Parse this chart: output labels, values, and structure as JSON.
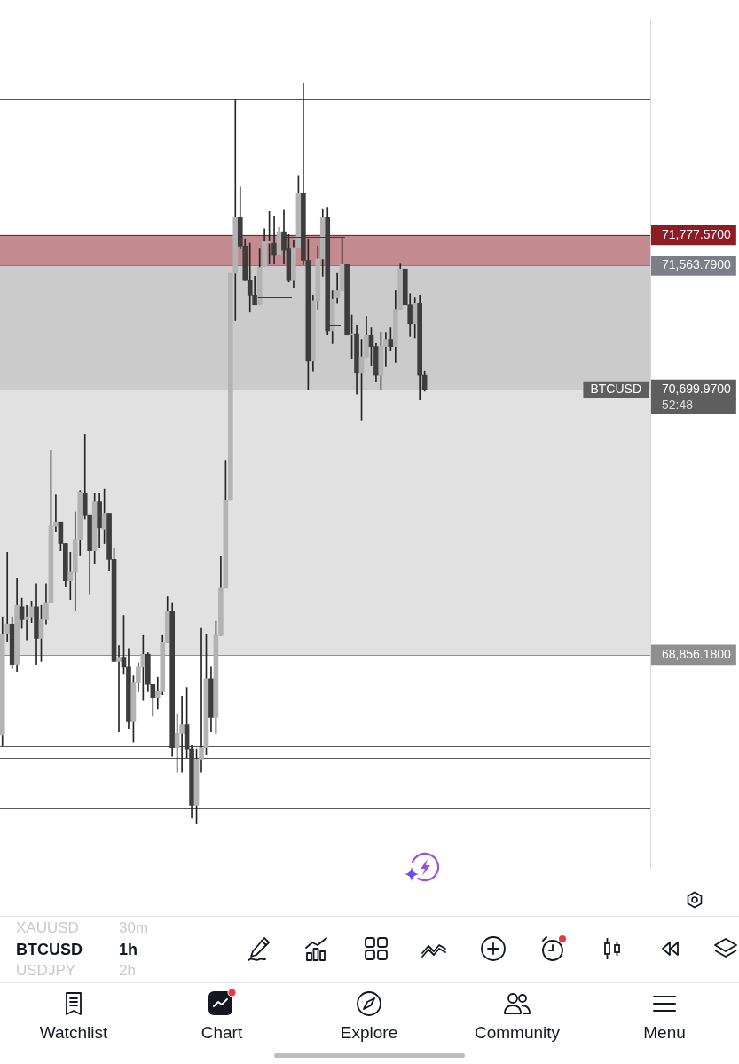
{
  "chart_data": {
    "type": "candlestick",
    "categories": [
      null,
      null,
      null,
      null,
      null,
      null,
      null,
      null,
      null,
      null,
      null,
      null,
      null,
      null,
      null,
      null,
      null,
      null,
      null,
      null,
      null,
      null,
      null,
      null,
      null,
      null,
      null,
      null,
      null,
      null,
      null,
      null,
      null,
      null,
      null,
      null,
      null,
      null,
      null,
      null,
      null,
      null,
      null,
      null,
      null,
      null,
      null,
      null,
      null,
      null,
      null,
      null,
      null,
      null,
      null,
      null,
      null,
      null,
      null,
      null,
      null,
      null,
      null,
      null,
      null,
      null,
      null,
      null,
      null,
      null,
      null,
      null,
      null,
      null,
      null,
      null,
      null,
      null,
      null,
      null,
      null,
      null,
      null,
      null,
      null,
      null,
      null,
      null,
      null,
      null,
      null,
      null,
      null,
      null,
      null,
      null,
      null,
      null,
      null,
      null,
      null,
      null,
      null,
      null,
      null,
      null,
      null,
      null,
      null,
      null,
      null,
      null,
      null,
      null,
      null,
      null,
      null,
      null,
      null,
      null,
      null,
      null,
      null,
      null,
      null,
      null,
      null,
      null,
      null,
      null,
      null,
      null,
      null,
      null
    ],
    "series": [
      {
        "name": "BTCUSD",
        "ohlc": [
          [
            68300,
            69120,
            68220,
            69000
          ],
          [
            69000,
            69570,
            68950,
            69070
          ],
          [
            69070,
            69120,
            68760,
            68790
          ],
          [
            68790,
            69390,
            68740,
            69200
          ],
          [
            69190,
            69250,
            69040,
            69100
          ],
          [
            69100,
            69200,
            68960,
            69120
          ],
          [
            69120,
            69230,
            69080,
            69190
          ],
          [
            69190,
            69350,
            68790,
            68970
          ],
          [
            68970,
            69200,
            68810,
            69100
          ],
          [
            69100,
            69350,
            69070,
            69220
          ],
          [
            69220,
            70280,
            69220,
            69750
          ],
          [
            69750,
            69970,
            69710,
            69780
          ],
          [
            69780,
            69780,
            69580,
            69630
          ],
          [
            69630,
            69630,
            69330,
            69370
          ],
          [
            69370,
            69570,
            69240,
            69430
          ],
          [
            69430,
            69850,
            69160,
            69660
          ],
          [
            69660,
            70000,
            69550,
            69990
          ],
          [
            69980,
            70390,
            69800,
            69830
          ],
          [
            69830,
            69830,
            69280,
            69580
          ],
          [
            69580,
            69980,
            69490,
            69920
          ],
          [
            69920,
            69980,
            69600,
            69740
          ],
          [
            69730,
            70010,
            69630,
            69840
          ],
          [
            69840,
            69840,
            69440,
            69520
          ],
          [
            69520,
            69600,
            68810,
            68810
          ],
          [
            68810,
            68920,
            68320,
            68840
          ],
          [
            68840,
            69130,
            68720,
            68770
          ],
          [
            68770,
            68900,
            68340,
            68390
          ],
          [
            68390,
            68710,
            68250,
            68660
          ],
          [
            68660,
            68800,
            68600,
            68770
          ],
          [
            68770,
            68990,
            68540,
            68860
          ],
          [
            68860,
            68870,
            68600,
            68650
          ],
          [
            68650,
            68650,
            68430,
            68560
          ],
          [
            68560,
            68700,
            68480,
            68600
          ],
          [
            68600,
            68990,
            68580,
            68940
          ],
          [
            68940,
            69260,
            68940,
            69160
          ],
          [
            69160,
            69220,
            68150,
            68210
          ],
          [
            68210,
            68440,
            68040,
            68310
          ],
          [
            68310,
            68570,
            68040,
            68370
          ],
          [
            68370,
            68630,
            68140,
            68200
          ],
          [
            68200,
            68230,
            67720,
            67810
          ],
          [
            67810,
            68200,
            67680,
            68130
          ],
          [
            68130,
            69040,
            68040,
            68210
          ],
          [
            68210,
            69000,
            68160,
            68690
          ],
          [
            68690,
            68770,
            68320,
            68420
          ],
          [
            68420,
            69090,
            68310,
            68990
          ],
          [
            68990,
            69540,
            68990,
            69320
          ],
          [
            69320,
            70210,
            69320,
            69930
          ],
          [
            69930,
            71510,
            69930,
            71510
          ],
          [
            71510,
            72720,
            71180,
            71900
          ],
          [
            71900,
            72110,
            71680,
            71700
          ],
          [
            71700,
            71750,
            71460,
            71460
          ],
          [
            71460,
            71720,
            71240,
            71360
          ],
          [
            71360,
            71490,
            71290,
            71290
          ],
          [
            71290,
            71680,
            71290,
            71550
          ],
          [
            71560,
            71820,
            71560,
            71730
          ],
          [
            71720,
            71940,
            71580,
            71730
          ],
          [
            71720,
            71910,
            71580,
            71640
          ],
          [
            71640,
            71830,
            71640,
            71800
          ],
          [
            71800,
            71950,
            71580,
            71670
          ],
          [
            71680,
            71780,
            71450,
            71460
          ],
          [
            71460,
            71740,
            71410,
            71690
          ],
          [
            71690,
            72190,
            71690,
            72070
          ],
          [
            72070,
            72830,
            71570,
            71600
          ],
          [
            71600,
            71750,
            70700,
            70900
          ],
          [
            70900,
            71360,
            70830,
            71320
          ],
          [
            71320,
            71700,
            71260,
            71610
          ],
          [
            71610,
            71960,
            71490,
            71900
          ],
          [
            71900,
            71970,
            71080,
            71110
          ],
          [
            71110,
            71390,
            71020,
            71330
          ],
          [
            71340,
            71510,
            71300,
            71390
          ],
          [
            71390,
            71760,
            71390,
            71570
          ],
          [
            71570,
            71570,
            71080,
            71080
          ],
          [
            71080,
            71220,
            70920,
            71090
          ],
          [
            71090,
            71150,
            70670,
            70820
          ],
          [
            70820,
            71050,
            70490,
            70930
          ],
          [
            70930,
            71210,
            70930,
            71080
          ],
          [
            71080,
            71130,
            70870,
            71000
          ],
          [
            71000,
            71020,
            70760,
            70800
          ],
          [
            70800,
            71100,
            70700,
            71000
          ],
          [
            71000,
            71100,
            70860,
            71050
          ],
          [
            71050,
            71130,
            70970,
            71000
          ],
          [
            71000,
            71390,
            70890,
            71260
          ],
          [
            71260,
            71580,
            71260,
            71540
          ],
          [
            71540,
            71540,
            71290,
            71290
          ],
          [
            71290,
            71370,
            71070,
            71160
          ],
          [
            71160,
            71340,
            71060,
            71300
          ],
          [
            71300,
            71360,
            70630,
            70800
          ],
          [
            70800,
            70830,
            70690,
            70699.97
          ],
          null,
          null,
          null,
          null,
          null,
          null,
          null,
          null,
          null,
          null,
          null,
          null,
          null,
          null,
          null,
          null,
          null,
          null,
          null,
          null,
          null,
          null,
          null,
          null,
          null,
          null,
          null,
          null,
          null,
          null,
          null,
          null,
          null,
          null,
          null,
          null,
          null,
          null,
          null,
          null,
          null,
          null,
          null,
          null,
          null,
          null
        ],
        "colors": [
          "#b3b3b3",
          "#b3b3b3",
          "#3d3d3d",
          "#b3b3b3",
          "#3d3d3d",
          "#b3b3b3",
          "#b3b3b3",
          "#3d3d3d",
          "#b3b3b3",
          "#b3b3b3",
          "#b3b3b3",
          "#b3b3b3",
          "#3d3d3d",
          "#3d3d3d",
          "#b3b3b3",
          "#b3b3b3",
          "#b3b3b3",
          "#3d3d3d",
          "#3d3d3d",
          "#b3b3b3",
          "#3d3d3d",
          "#b3b3b3",
          "#3d3d3d",
          "#3d3d3d",
          "#b3b3b3",
          "#3d3d3d",
          "#3d3d3d",
          "#b3b3b3",
          "#b3b3b3",
          "#b3b3b3",
          "#3d3d3d",
          "#3d3d3d",
          "#b3b3b3",
          "#b3b3b3",
          "#b3b3b3",
          "#3d3d3d",
          "#b3b3b3",
          "#b3b3b3",
          "#3d3d3d",
          "#3d3d3d",
          "#b3b3b3",
          "#b3b3b3",
          "#b3b3b3",
          "#3d3d3d",
          "#b3b3b3",
          "#b3b3b3",
          "#b3b3b3",
          "#b3b3b3",
          "#b3b3b3",
          "#3d3d3d",
          "#3d3d3d",
          "#3d3d3d",
          "#3d3d3d",
          "#b3b3b3",
          "#b3b3b3",
          "#b3b3b3",
          "#3d3d3d",
          "#b3b3b3",
          "#3d3d3d",
          "#3d3d3d",
          "#b3b3b3",
          "#b3b3b3",
          "#3d3d3d",
          "#3d3d3d",
          "#b3b3b3",
          "#b3b3b3",
          "#b3b3b3",
          "#3d3d3d",
          "#b3b3b3",
          "#b3b3b3",
          "#b3b3b3",
          "#3d3d3d",
          "#b3b3b3",
          "#3d3d3d",
          "#b3b3b3",
          "#b3b3b3",
          "#3d3d3d",
          "#3d3d3d",
          "#b3b3b3",
          "#b3b3b3",
          "#3d3d3d",
          "#b3b3b3",
          "#b3b3b3",
          "#3d3d3d",
          "#3d3d3d",
          "#b3b3b3",
          "#3d3d3d",
          "#3d3d3d",
          null,
          null,
          null,
          null,
          null,
          null,
          null,
          null,
          null,
          null,
          null,
          null,
          null,
          null,
          null,
          null,
          null,
          null,
          null,
          null,
          null,
          null,
          null,
          null,
          null,
          null,
          null,
          null,
          null,
          null,
          null,
          null,
          null,
          null,
          null,
          null,
          null,
          null,
          null,
          null,
          null,
          null,
          null,
          null,
          null,
          null
        ]
      }
    ],
    "ylim": [
      67370,
      73280
    ],
    "yticks": [
      {
        "value": 71777.57,
        "label": "71,777.5700"
      },
      {
        "value": 71563.79,
        "label": "71,563.7900"
      },
      {
        "value": 70699.97,
        "label": "70,699.9700"
      },
      {
        "value": 68856.18,
        "label": "68,856.1800"
      }
    ],
    "tick_labels": "y",
    "bands": [
      {
        "axis": "y",
        "from": 68856.18,
        "to": 71563.79,
        "color": "#e1e1e1"
      },
      {
        "axis": "y",
        "from": 70699.97,
        "to": 71563.79,
        "color": "#cbcbcb"
      },
      {
        "axis": "y",
        "from": 71563.79,
        "to": 71777.57,
        "color": "#c38b90"
      }
    ],
    "ref_lines": [
      {
        "axis": "y",
        "value": 71777.57,
        "color": "#8e1c24"
      },
      {
        "axis": "y",
        "value": 71563.79,
        "color": "#7c7f88"
      },
      {
        "axis": "y",
        "value": 70699.97,
        "color": "#5e5e5e"
      },
      {
        "axis": "y",
        "value": 68856.18,
        "color": "#8f8f8f"
      },
      {
        "axis": "y",
        "value": 72720,
        "color": "#555555"
      },
      {
        "axis": "y",
        "value": 68220,
        "color": "#555555"
      },
      {
        "axis": "y",
        "value": 68140,
        "color": "#555555"
      },
      {
        "axis": "y",
        "value": 67790,
        "color": "#555555"
      }
    ],
    "annotations": [
      "52:48",
      "XAUUSD",
      "30m",
      "BTCUSD",
      "1h",
      "USDJPY",
      "2h",
      "Watchlist",
      "Chart",
      "Explore",
      "Community",
      "Menu"
    ]
  }
}
